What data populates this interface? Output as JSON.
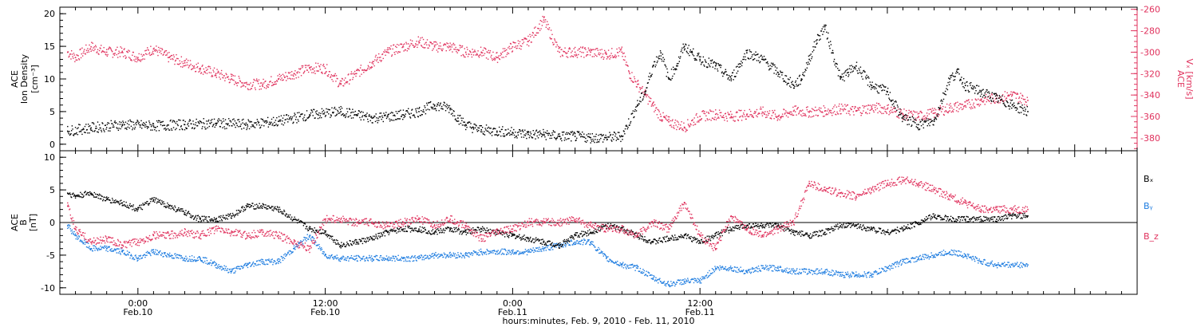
{
  "colors": {
    "black": "#000000",
    "pink": "#e0335e",
    "blue": "#1f7de0"
  },
  "chart_data": [
    {
      "type": "scatter",
      "panel": "top",
      "ylabel_left": [
        "ACE",
        "Ion Density",
        "[cm⁻³]"
      ],
      "ylabel_right": [
        "ACE",
        "Vₓ [km/s]"
      ],
      "ylim": [
        -1,
        21
      ],
      "yticks": [
        0,
        5,
        10,
        15,
        20
      ],
      "ylim_right": [
        -392,
        -258
      ],
      "yticks_right": [
        -380,
        -360,
        -340,
        -320,
        -300,
        -280,
        -260
      ],
      "x_unit": "hours since 2010-02-09 00:00 UT",
      "xlim": [
        19,
        88
      ],
      "series": [
        {
          "name": "Ion Density",
          "color": "#000000",
          "axis": "left",
          "x": [
            19.5,
            21,
            23,
            25,
            27,
            29,
            31,
            33,
            35,
            37,
            38,
            39,
            40,
            41,
            42,
            43,
            44,
            44.5,
            45,
            45.5,
            46,
            47,
            48,
            49,
            50,
            51,
            52,
            53,
            54,
            55,
            56,
            56.5,
            57,
            57.5,
            58,
            58.5,
            59,
            59.5,
            60,
            61,
            62,
            63,
            64,
            65,
            66,
            66.5,
            67,
            67.5,
            68,
            68.5,
            69,
            69.5,
            70,
            71,
            72,
            73,
            74,
            75,
            76,
            76.5,
            77,
            78,
            79,
            80,
            81
          ],
          "y": [
            2,
            2.5,
            3,
            2.8,
            3,
            3.2,
            3,
            3.5,
            4.5,
            5,
            4.5,
            4,
            4.2,
            4.5,
            5,
            6,
            5.5,
            4,
            3,
            2.5,
            2.2,
            2,
            1.8,
            1.5,
            1.5,
            1.2,
            1.2,
            1,
            1,
            1.2,
            6,
            8,
            12,
            14,
            10,
            12,
            15,
            14,
            13,
            12,
            10,
            14,
            13,
            11,
            9,
            10,
            13,
            16,
            18,
            14,
            10,
            11,
            12,
            9,
            8,
            4,
            3,
            3.5,
            10,
            11,
            9,
            8,
            7,
            6,
            5
          ]
        },
        {
          "name": "Vx",
          "color": "#e0335e",
          "axis": "right",
          "x": [
            19.5,
            20,
            21,
            22,
            23,
            24,
            25,
            26,
            27,
            28,
            29,
            30,
            31,
            32,
            33,
            34,
            35,
            36,
            37,
            38,
            39,
            40,
            41,
            42,
            43,
            44,
            45,
            46,
            47,
            48,
            49,
            50,
            51,
            52,
            53,
            54,
            55,
            55.5,
            56,
            56.5,
            57,
            57.5,
            58,
            59,
            60,
            61,
            62,
            63,
            64,
            65,
            66,
            67,
            68,
            69,
            70,
            71,
            72,
            73,
            74,
            75,
            76,
            77,
            78,
            79,
            80,
            81
          ],
          "y": [
            -300,
            -305,
            -295,
            -300,
            -300,
            -305,
            -297,
            -305,
            -310,
            -315,
            -320,
            -325,
            -330,
            -330,
            -325,
            -320,
            -315,
            -315,
            -330,
            -320,
            -310,
            -300,
            -295,
            -290,
            -295,
            -295,
            -300,
            -300,
            -305,
            -295,
            -290,
            -270,
            -300,
            -300,
            -300,
            -302,
            -300,
            -320,
            -330,
            -340,
            -350,
            -360,
            -365,
            -370,
            -360,
            -358,
            -360,
            -358,
            -356,
            -360,
            -355,
            -356,
            -355,
            -353,
            -355,
            -352,
            -353,
            -358,
            -360,
            -357,
            -352,
            -350,
            -345,
            -343,
            -340,
            -345
          ]
        }
      ]
    },
    {
      "type": "scatter",
      "panel": "bottom",
      "ylabel_left": [
        "ACE",
        "B",
        "[nT]"
      ],
      "ylim": [
        -11,
        11
      ],
      "yticks": [
        -10,
        -5,
        0,
        5,
        10
      ],
      "x_unit": "hours since 2010-02-09 00:00 UT",
      "xlim": [
        19,
        88
      ],
      "xticks": [
        24,
        36,
        48,
        60
      ],
      "xticklabels": [
        [
          "0:00",
          "Feb.10"
        ],
        [
          "12:00",
          "Feb.10"
        ],
        [
          "0:00",
          "Feb.11"
        ],
        [
          "12:00",
          "Feb.11"
        ]
      ],
      "xlabel": "hours:minutes, Feb. 9, 2010 - Feb. 11, 2010",
      "series": [
        {
          "name": "Bₓ",
          "color": "#000000",
          "x": [
            19.5,
            20,
            21,
            22,
            23,
            24,
            25,
            26,
            27,
            28,
            29,
            30,
            31,
            32,
            33,
            34,
            35,
            36,
            37,
            38,
            39,
            40,
            41,
            42,
            43,
            44,
            45,
            46,
            47,
            48,
            49,
            50,
            51,
            52,
            53,
            54,
            55,
            56,
            57,
            58,
            59,
            60,
            61,
            62,
            63,
            64,
            65,
            66,
            67,
            68,
            69,
            70,
            71,
            72,
            73,
            74,
            75,
            76,
            77,
            78,
            79,
            80,
            81
          ],
          "y": [
            4.5,
            4,
            4.5,
            3.5,
            3,
            2,
            3.5,
            2.5,
            1.5,
            0.5,
            0.5,
            1,
            2.5,
            2.5,
            2,
            0.5,
            -1,
            -1.5,
            -3.5,
            -3,
            -2.5,
            -1.5,
            -1,
            -1,
            -1.5,
            -1,
            -1.5,
            -1,
            -1.5,
            -2,
            -2.5,
            -3,
            -3.5,
            -2,
            -1.5,
            -0.5,
            -1,
            -2,
            -3,
            -2.5,
            -2,
            -3,
            -2,
            -1,
            -0.5,
            -0.5,
            -0.5,
            -1.5,
            -2,
            -1.5,
            -0.5,
            -0.5,
            -1,
            -1.5,
            -1,
            0,
            1,
            0.5,
            0.5,
            0.5,
            0.5,
            1,
            1
          ]
        },
        {
          "name": "Bᵧ",
          "color": "#1f7de0",
          "x": [
            19.5,
            20,
            21,
            22,
            23,
            24,
            25,
            26,
            27,
            28,
            29,
            30,
            31,
            32,
            33,
            34,
            35,
            36,
            37,
            38,
            39,
            40,
            41,
            42,
            43,
            44,
            45,
            46,
            47,
            48,
            49,
            50,
            51,
            52,
            53,
            54,
            55,
            56,
            57,
            58,
            59,
            60,
            61,
            62,
            63,
            64,
            65,
            66,
            67,
            68,
            69,
            70,
            71,
            72,
            73,
            74,
            75,
            76,
            77,
            78,
            79,
            80,
            81
          ],
          "y": [
            -0.5,
            -2,
            -4,
            -4,
            -4.5,
            -5.5,
            -4.5,
            -5,
            -5.5,
            -5.5,
            -6.5,
            -7.5,
            -6.5,
            -6,
            -6,
            -4,
            -2,
            -5,
            -5.5,
            -5.5,
            -5.5,
            -5.5,
            -5.5,
            -5.5,
            -5,
            -5,
            -5,
            -4.5,
            -4.5,
            -4.5,
            -4.5,
            -4,
            -3.5,
            -3,
            -3,
            -5.5,
            -6.5,
            -7,
            -8.5,
            -9.5,
            -9,
            -9,
            -7,
            -7,
            -7.5,
            -7,
            -7,
            -7.5,
            -7.5,
            -7.5,
            -8,
            -8,
            -8,
            -7,
            -6,
            -5.5,
            -5,
            -4.5,
            -5,
            -6,
            -6.5,
            -6.5,
            -6.5
          ]
        },
        {
          "name": "B_z",
          "color": "#e0335e",
          "x": [
            19.5,
            20,
            21,
            22,
            23,
            24,
            25,
            26,
            27,
            28,
            29,
            30,
            31,
            32,
            33,
            34,
            35,
            36,
            37,
            38,
            39,
            40,
            41,
            42,
            43,
            44,
            45,
            46,
            47,
            48,
            49,
            50,
            51,
            52,
            53,
            54,
            55,
            56,
            57,
            58,
            59,
            60,
            61,
            62,
            63,
            64,
            65,
            66,
            67,
            68,
            69,
            70,
            71,
            72,
            73,
            74,
            75,
            76,
            77,
            78,
            79,
            80,
            81
          ],
          "y": [
            2.5,
            -1,
            -3,
            -2.5,
            -3.5,
            -3,
            -2,
            -2,
            -1.5,
            -2,
            -1,
            -1.5,
            -2,
            -1.5,
            -2,
            -3,
            -4,
            0.5,
            0.5,
            0,
            0,
            -0.5,
            0,
            0.5,
            -0.5,
            0.5,
            -0.5,
            -2.5,
            -1.5,
            -1,
            0,
            0,
            0,
            0.5,
            -0.5,
            -1,
            -1,
            -2,
            0,
            -1,
            3,
            -2,
            -4,
            1,
            -1,
            -2,
            -1,
            0,
            6,
            5,
            4.5,
            4,
            5,
            6,
            6.5,
            6,
            5,
            4,
            3,
            2,
            2,
            2,
            2
          ]
        }
      ]
    }
  ]
}
